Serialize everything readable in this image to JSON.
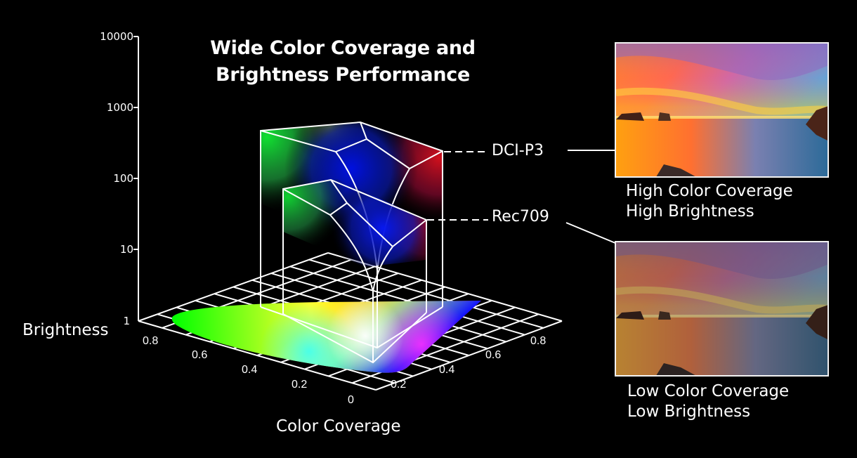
{
  "title": {
    "line1": "Wide Color Coverage and",
    "line2": "Brightness Performance"
  },
  "y_axis": {
    "label": "Brightness",
    "scale": "log",
    "ticks": [
      "10000",
      "1000",
      "100",
      "10",
      "1"
    ]
  },
  "x_axis": {
    "label": "Color Coverage",
    "left_ticks": [
      "0.8",
      "0.6",
      "0.4",
      "0.2",
      "0"
    ],
    "right_ticks": [
      "0.2",
      "0.4",
      "0.6",
      "0.8"
    ]
  },
  "series": [
    {
      "name": "DCI-P3",
      "color": "#ffffff"
    },
    {
      "name": "Rec709",
      "color": "#ffffff"
    }
  ],
  "comparison": [
    {
      "id": "high",
      "caption_line1": "High Color Coverage",
      "caption_line2": "High Brightness",
      "linked_series": "DCI-P3"
    },
    {
      "id": "low",
      "caption_line1": "Low Color Coverage",
      "caption_line2": "Low Brightness",
      "linked_series": "Rec709"
    }
  ],
  "colors": {
    "background": "#000000",
    "lines": "#ffffff",
    "gamut_green": "#00ff00",
    "gamut_red": "#ff1a1a",
    "gamut_blue": "#1010ff"
  },
  "chart_data": {
    "type": "3d-volume",
    "title": "Wide Color Coverage and Brightness Performance",
    "xlabel": "Color Coverage",
    "ylabel": "Brightness",
    "z_scale": "log",
    "z_ticks": [
      1,
      10,
      100,
      1000,
      10000
    ],
    "x_ticks": [
      0,
      0.2,
      0.4,
      0.6,
      0.8
    ],
    "y_ticks": [
      0.2,
      0.4,
      0.6,
      0.8
    ],
    "series": [
      {
        "name": "DCI-P3",
        "relative_peak_brightness": "~400 (between 100 and 1000)"
      },
      {
        "name": "Rec709",
        "relative_peak_brightness": "~30 (between 10 and 100)"
      }
    ],
    "annotations": [
      "High Color Coverage / High Brightness",
      "Low Color Coverage / Low Brightness"
    ]
  }
}
